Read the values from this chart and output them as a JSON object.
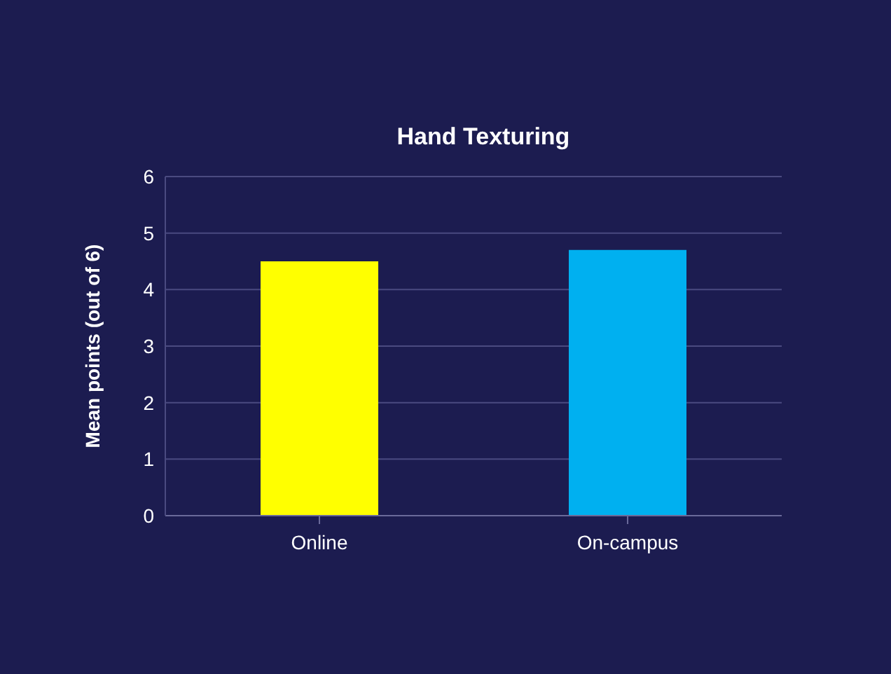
{
  "chart_data": {
    "type": "bar",
    "title": "Hand Texturing",
    "ylabel": "Mean points (out of 6)",
    "categories": [
      "Online",
      "On-campus"
    ],
    "values": [
      4.5,
      4.7
    ],
    "colors": [
      "#ffff00",
      "#00b0f0"
    ],
    "ylim": [
      0,
      6
    ],
    "yticks": [
      0,
      1,
      2,
      3,
      4,
      5,
      6
    ],
    "grid": "y",
    "legend": false
  }
}
